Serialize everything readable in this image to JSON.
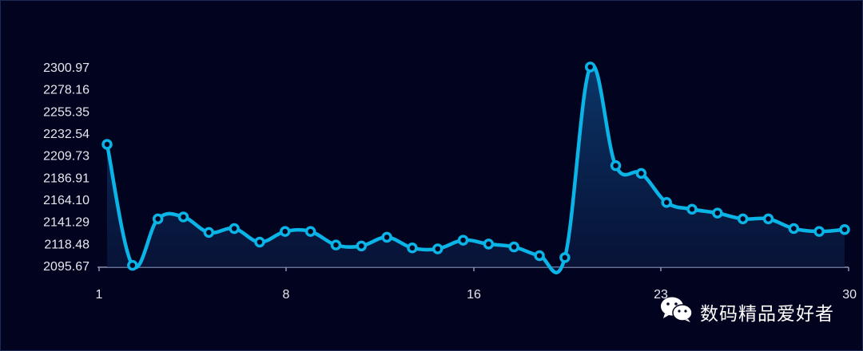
{
  "chart_data": {
    "type": "area",
    "x_ticks": [
      "1",
      "8",
      "16",
      "23",
      "30"
    ],
    "y_ticks": [
      "2095.67",
      "2118.48",
      "2141.29",
      "2164.10",
      "2186.91",
      "2209.73",
      "2232.54",
      "2255.35",
      "2278.16",
      "2300.97"
    ],
    "ylim": [
      2095.67,
      2300.97
    ],
    "xlim": [
      1,
      30
    ],
    "series": [
      {
        "x": [
          1,
          2,
          3,
          4,
          5,
          6,
          7,
          8,
          9,
          10,
          11,
          12,
          13,
          14,
          15,
          16,
          17,
          18,
          19,
          20,
          21,
          22,
          23,
          24,
          25,
          26,
          27,
          28,
          29,
          30
        ],
        "values": [
          2221,
          2096,
          2144,
          2146,
          2130,
          2134,
          2120,
          2131,
          2131,
          2117,
          2116,
          2125,
          2114,
          2113,
          2122,
          2118,
          2115,
          2106,
          2104,
          2301,
          2199,
          2191,
          2161,
          2154,
          2150,
          2144,
          2144,
          2134,
          2131,
          2133
        ],
        "color": "#0ab4e6"
      }
    ],
    "grid": false
  },
  "watermark": {
    "icon": "wechat-icon",
    "text": "数码精品爱好者"
  }
}
